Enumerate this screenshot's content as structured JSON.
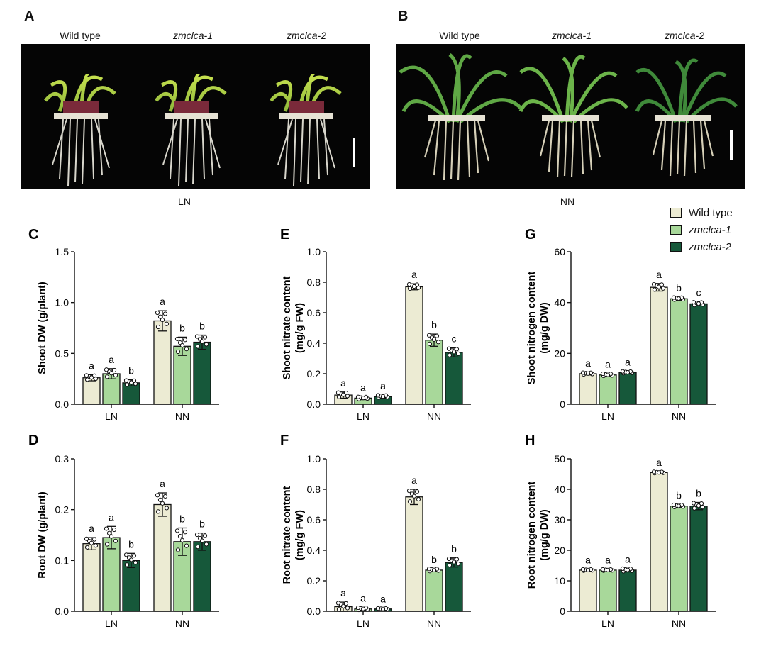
{
  "photos": {
    "A": {
      "letter": "A",
      "genotypes": [
        "Wild type",
        "zmclca-1",
        "zmclca-2"
      ],
      "condition": "LN"
    },
    "B": {
      "letter": "B",
      "genotypes": [
        "Wild type",
        "zmclca-1",
        "zmclca-2"
      ],
      "condition": "NN"
    }
  },
  "legend": {
    "items": [
      {
        "label": "Wild type",
        "color": "#ecebd3",
        "italic": false
      },
      {
        "label": "zmclca-1",
        "color": "#a8d89a",
        "italic": true
      },
      {
        "label": "zmclca-2",
        "color": "#16583a",
        "italic": true
      }
    ]
  },
  "chart_data": [
    {
      "id": "C",
      "letter": "C",
      "type": "bar",
      "ylabel": "Shoot DW (g/plant)",
      "categories": [
        "LN",
        "NN"
      ],
      "ylim": [
        0,
        1.5
      ],
      "yticks": [
        "0.0",
        "0.5",
        "1.0",
        "1.5"
      ],
      "series": [
        {
          "name": "Wild type",
          "values": [
            0.26,
            0.82
          ],
          "errors": [
            0.03,
            0.1
          ],
          "letters": [
            "a",
            "a"
          ]
        },
        {
          "name": "zmclca-1",
          "values": [
            0.3,
            0.57
          ],
          "errors": [
            0.05,
            0.09
          ],
          "letters": [
            "a",
            "b"
          ]
        },
        {
          "name": "zmclca-2",
          "values": [
            0.21,
            0.61
          ],
          "errors": [
            0.03,
            0.07
          ],
          "letters": [
            "b",
            "b"
          ]
        }
      ]
    },
    {
      "id": "E",
      "letter": "E",
      "type": "bar",
      "ylabel": "Shoot nitrate content (mg/g FW)",
      "categories": [
        "LN",
        "NN"
      ],
      "ylim": [
        0,
        1.0
      ],
      "yticks": [
        "0.0",
        "0.2",
        "0.4",
        "0.6",
        "0.8",
        "1.0"
      ],
      "series": [
        {
          "name": "Wild type",
          "values": [
            0.06,
            0.77
          ],
          "errors": [
            0.02,
            0.02
          ],
          "letters": [
            "a",
            "a"
          ]
        },
        {
          "name": "zmclca-1",
          "values": [
            0.04,
            0.42
          ],
          "errors": [
            0.01,
            0.04
          ],
          "letters": [
            "a",
            "b"
          ]
        },
        {
          "name": "zmclca-2",
          "values": [
            0.05,
            0.34
          ],
          "errors": [
            0.01,
            0.03
          ],
          "letters": [
            "a",
            "c"
          ]
        }
      ]
    },
    {
      "id": "G",
      "letter": "G",
      "type": "bar",
      "ylabel": "Shoot nitrogen content (mg/g DW)",
      "categories": [
        "LN",
        "NN"
      ],
      "ylim": [
        0,
        60
      ],
      "yticks": [
        "0",
        "20",
        "40",
        "60"
      ],
      "series": [
        {
          "name": "Wild type",
          "values": [
            12,
            46
          ],
          "errors": [
            0.5,
            1.5
          ],
          "letters": [
            "a",
            "a"
          ]
        },
        {
          "name": "zmclca-1",
          "values": [
            11.5,
            41.5
          ],
          "errors": [
            0.6,
            0.6
          ],
          "letters": [
            "a",
            "b"
          ]
        },
        {
          "name": "zmclca-2",
          "values": [
            12.5,
            39.5
          ],
          "errors": [
            0.5,
            0.8
          ],
          "letters": [
            "a",
            "c"
          ]
        }
      ]
    },
    {
      "id": "D",
      "letter": "D",
      "type": "bar",
      "ylabel": "Root DW (g/plant)",
      "categories": [
        "LN",
        "NN"
      ],
      "ylim": [
        0,
        0.3
      ],
      "yticks": [
        "0.0",
        "0.1",
        "0.2",
        "0.3"
      ],
      "series": [
        {
          "name": "Wild type",
          "values": [
            0.133,
            0.21
          ],
          "errors": [
            0.012,
            0.023
          ],
          "letters": [
            "a",
            "a"
          ]
        },
        {
          "name": "zmclca-1",
          "values": [
            0.145,
            0.137
          ],
          "errors": [
            0.022,
            0.027
          ],
          "letters": [
            "a",
            "b"
          ]
        },
        {
          "name": "zmclca-2",
          "values": [
            0.1,
            0.137
          ],
          "errors": [
            0.014,
            0.017
          ],
          "letters": [
            "b",
            "b"
          ]
        }
      ]
    },
    {
      "id": "F",
      "letter": "F",
      "type": "bar",
      "ylabel": "Root nitrate content (mg/g FW)",
      "categories": [
        "LN",
        "NN"
      ],
      "ylim": [
        0,
        1.0
      ],
      "yticks": [
        "0.0",
        "0.2",
        "0.4",
        "0.6",
        "0.8",
        "1.0"
      ],
      "series": [
        {
          "name": "Wild type",
          "values": [
            0.03,
            0.75
          ],
          "errors": [
            0.03,
            0.05
          ],
          "letters": [
            "a",
            "a"
          ]
        },
        {
          "name": "zmclca-1",
          "values": [
            0.015,
            0.27
          ],
          "errors": [
            0.01,
            0.01
          ],
          "letters": [
            "a",
            "b"
          ]
        },
        {
          "name": "zmclca-2",
          "values": [
            0.015,
            0.32
          ],
          "errors": [
            0.005,
            0.03
          ],
          "letters": [
            "a",
            "b"
          ]
        }
      ]
    },
    {
      "id": "H",
      "letter": "H",
      "type": "bar",
      "ylabel": "Root nitrogen content (mg/g DW)",
      "categories": [
        "LN",
        "NN"
      ],
      "ylim": [
        0,
        50
      ],
      "yticks": [
        "0",
        "10",
        "20",
        "30",
        "40",
        "50"
      ],
      "series": [
        {
          "name": "Wild type",
          "values": [
            13.5,
            45.5
          ],
          "errors": [
            0.3,
            0.3
          ],
          "letters": [
            "a",
            "a"
          ]
        },
        {
          "name": "zmclca-1",
          "values": [
            13.5,
            34.5
          ],
          "errors": [
            0.3,
            0.5
          ],
          "letters": [
            "a",
            "b"
          ]
        },
        {
          "name": "zmclca-2",
          "values": [
            13.5,
            34.5
          ],
          "errors": [
            0.6,
            1.2
          ],
          "letters": [
            "a",
            "b"
          ]
        }
      ]
    }
  ]
}
